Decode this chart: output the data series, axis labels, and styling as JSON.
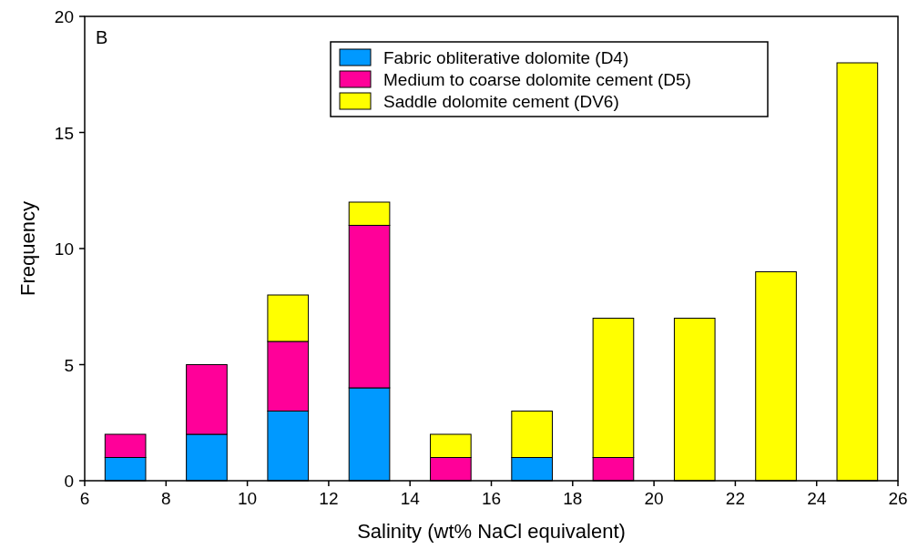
{
  "chart_data": {
    "type": "bar",
    "stacked": true,
    "x": [
      7,
      9,
      11,
      13,
      15,
      17,
      19,
      21,
      23,
      25
    ],
    "series": [
      {
        "name": "Fabric obliterative dolomite (D4)",
        "color": "#0099ff",
        "values": [
          1,
          2,
          3,
          4,
          0,
          1,
          0,
          0,
          0,
          0
        ]
      },
      {
        "name": "Medium to coarse dolomite cement (D5)",
        "color": "#ff0099",
        "values": [
          1,
          3,
          3,
          7,
          1,
          0,
          1,
          0,
          0,
          0
        ]
      },
      {
        "name": "Saddle dolomite cement (DV6)",
        "color": "#ffff00",
        "values": [
          0,
          0,
          2,
          1,
          1,
          2,
          6,
          7,
          9,
          18
        ]
      }
    ],
    "xlabel": "Salinity (wt% NaCl equivalent)",
    "ylabel": "Frequency",
    "xlim": [
      6,
      26
    ],
    "xticks": [
      6,
      8,
      10,
      12,
      14,
      16,
      18,
      20,
      22,
      24,
      26
    ],
    "ylim": [
      0,
      20
    ],
    "yticks": [
      0,
      5,
      10,
      15,
      20
    ],
    "annotations": [
      "B"
    ],
    "legend": "top",
    "grid": false
  }
}
